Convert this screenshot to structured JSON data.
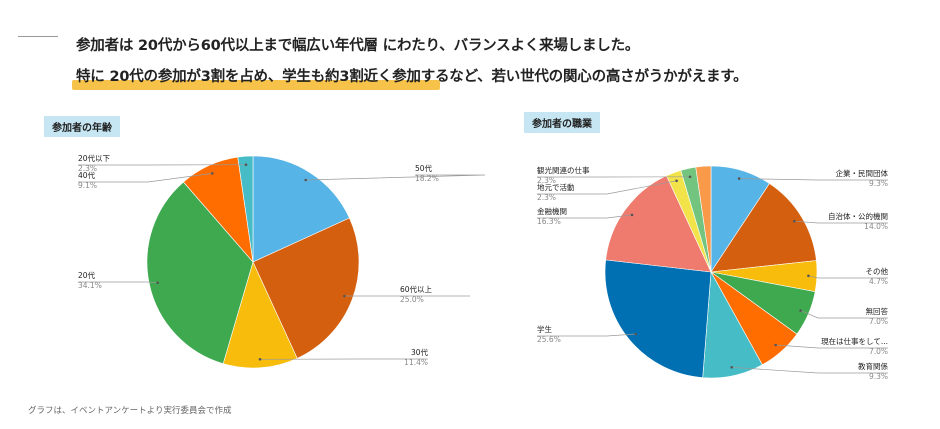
{
  "headline": {
    "line1": "参加者は 20代から60代以上まで幅広い年代層 にわたり、バランスよく来場しました。",
    "line2": "特に 20代の参加が3割を占め、学生も約3割近く参加するなど、若い世代の関心の高さがうかがえます。"
  },
  "footer": "グラフは、イベントアンケートより実行委員会で作成",
  "chart_data": [
    {
      "type": "pie",
      "title": "参加者の年齢",
      "slices": [
        {
          "label": "50代",
          "value": 18.2,
          "value_label": "18.2%",
          "color": "#57b4e6"
        },
        {
          "label": "60代以上",
          "value": 25.0,
          "value_label": "25.0%",
          "color": "#d45f0e"
        },
        {
          "label": "30代",
          "value": 11.4,
          "value_label": "11.4%",
          "color": "#f7bc0c"
        },
        {
          "label": "20代",
          "value": 34.1,
          "value_label": "34.1%",
          "color": "#3ea94f"
        },
        {
          "label": "40代",
          "value": 9.1,
          "value_label": "9.1%",
          "color": "#ff6d01"
        },
        {
          "label": "20代以下",
          "value": 2.3,
          "value_label": "2.3%",
          "color": "#46bdc6"
        }
      ]
    },
    {
      "type": "pie",
      "title": "参加者の職業",
      "slices": [
        {
          "label": "企業・民間団体",
          "value": 9.3,
          "value_label": "9.3%",
          "color": "#57b4e6"
        },
        {
          "label": "自治体・公的機関",
          "value": 14.0,
          "value_label": "14.0%",
          "color": "#d45f0e"
        },
        {
          "label": "その他",
          "value": 4.7,
          "value_label": "4.7%",
          "color": "#f7bc0c"
        },
        {
          "label": "無回答",
          "value": 7.0,
          "value_label": "7.0%",
          "color": "#3ea94f"
        },
        {
          "label": "現在は仕事をして...",
          "value": 7.0,
          "value_label": "7.0%",
          "color": "#ff6d01"
        },
        {
          "label": "教育関係",
          "value": 9.3,
          "value_label": "9.3%",
          "color": "#46bdc6"
        },
        {
          "label": "学生",
          "value": 25.6,
          "value_label": "25.6%",
          "color": "#0070b2"
        },
        {
          "label": "金融機関",
          "value": 16.3,
          "value_label": "16.3%",
          "color": "#ef7b6f"
        },
        {
          "label": "地元で活動",
          "value": 2.3,
          "value_label": "2.3%",
          "color": "#f2e34b"
        },
        {
          "label": "観光関連の仕事",
          "value": 2.3,
          "value_label": "2.3%",
          "color": "#72c47e"
        },
        {
          "label": "",
          "value": 2.3,
          "value_label": "",
          "color": "#f89a4a"
        }
      ]
    }
  ]
}
